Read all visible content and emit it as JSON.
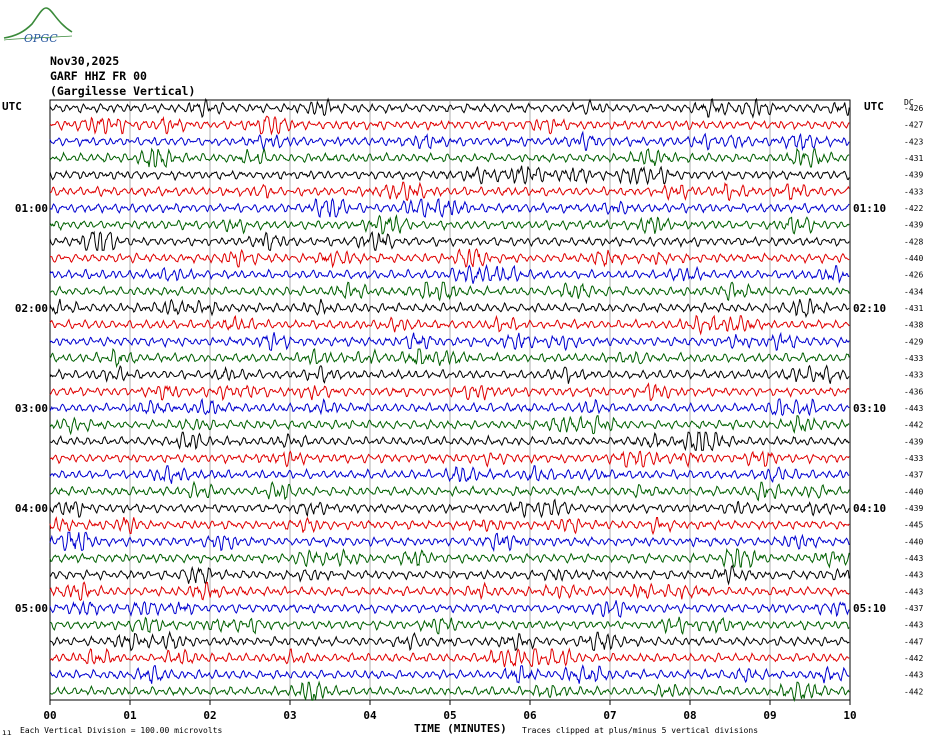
{
  "header": {
    "date": "Nov30,2025",
    "station": "GARF HHZ FR 00",
    "location": "(Gargilesse Vertical)"
  },
  "logo": {
    "text": "OPGC",
    "icon": "ofgc-mountain-logo"
  },
  "utc_left": "UTC",
  "utc_right": "UTC",
  "dc_label": "DC",
  "footer": {
    "division": "Each Vertical Division =  100.00 microvolts",
    "xlabel": "TIME (MINUTES)",
    "clip": "Traces clipped at plus/minus 5 vertical divisions"
  },
  "colors": {
    "trace_cycle": [
      "#000000",
      "#e00000",
      "#0000d0",
      "#006000"
    ],
    "grid": "#999999"
  },
  "chart_data": {
    "type": "line",
    "description_free": true,
    "x_ticks": [
      "00",
      "01",
      "02",
      "03",
      "04",
      "05",
      "06",
      "07",
      "08",
      "09",
      "10"
    ],
    "xlim": [
      0,
      10
    ],
    "left_hour_labels": [
      "01:00",
      "02:00",
      "03:00",
      "04:00",
      "05:00"
    ],
    "right_hour_labels": [
      "01:10",
      "02:10",
      "03:10",
      "04:10",
      "05:10"
    ],
    "trace_count": 36,
    "dc_offsets": [
      "-426",
      "-427",
      "-423",
      "-431",
      "-439",
      "-433",
      "-422",
      "-439",
      "-428",
      "-440",
      "-426",
      "-434",
      "-431",
      "-438",
      "-429",
      "-433",
      "-433",
      "-436",
      "-443",
      "-442",
      "-439",
      "-433",
      "-437",
      "-440",
      "-439",
      "-445",
      "-440",
      "-443",
      "-443",
      "-443",
      "-437",
      "-443",
      "-447",
      "-442",
      "-443",
      "-442"
    ]
  }
}
